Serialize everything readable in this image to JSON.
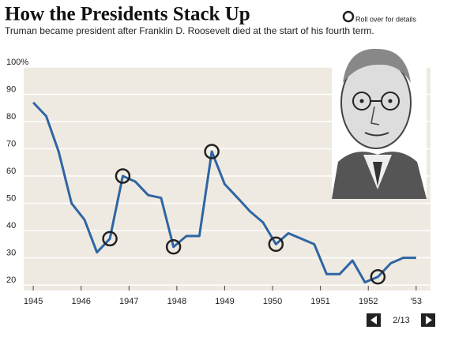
{
  "chart_data": {
    "type": "line",
    "title": "How the Presidents Stack Up",
    "subtitle": "Truman became president after Franklin D. Roosevelt died at the start of his fourth term.",
    "x": [
      1945.0,
      1945.27,
      1945.53,
      1945.8,
      1946.07,
      1946.33,
      1946.6,
      1946.87,
      1947.13,
      1947.4,
      1947.67,
      1947.93,
      1948.2,
      1948.47,
      1948.73,
      1949.0,
      1949.27,
      1949.53,
      1949.8,
      1950.07,
      1950.33,
      1950.6,
      1950.87,
      1951.13,
      1951.4,
      1951.67,
      1951.93,
      1952.2,
      1952.47,
      1952.73,
      1953.0
    ],
    "series": [
      {
        "color": "#2f65a3",
        "values": [
          87,
          82,
          69,
          50,
          44,
          32,
          37,
          60,
          58,
          53,
          52,
          34,
          38,
          38,
          69,
          57,
          52,
          47,
          43,
          35,
          39,
          37,
          35,
          24,
          24,
          29,
          21,
          23,
          28,
          30,
          30
        ]
      }
    ],
    "highlight_points": [
      6,
      7,
      11,
      14,
      19,
      27
    ],
    "xlim": [
      1944.8,
      1953.3
    ],
    "xticks": [
      1945,
      1946,
      1947,
      1948,
      1949,
      1950,
      1951,
      1952,
      {
        "value": 1953,
        "label": "'53"
      }
    ],
    "ylim": [
      18,
      100
    ],
    "yticks": [
      20,
      30,
      40,
      50,
      60,
      70,
      80,
      90,
      {
        "value": 100,
        "label": "100%"
      }
    ],
    "grid": true
  },
  "instruction": "Roll over for details",
  "pager": "2/13"
}
